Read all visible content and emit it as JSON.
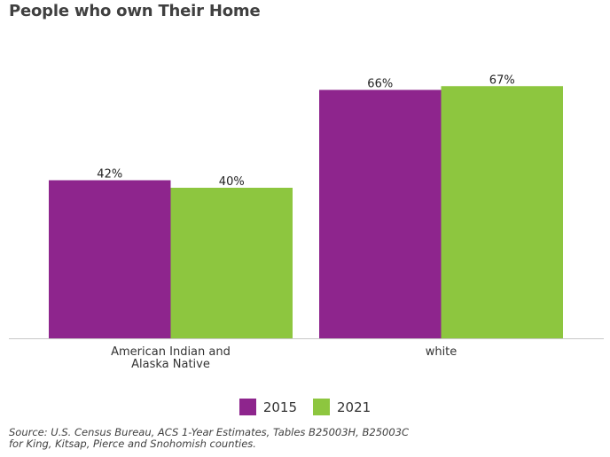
{
  "title": "People who own Their Home",
  "chart_data": {
    "type": "bar",
    "title": "People who own Their Home",
    "categories": [
      [
        "American Indian and",
        "Alaska Native"
      ],
      [
        "white"
      ]
    ],
    "series": [
      {
        "name": "2015",
        "values": [
          42,
          66
        ],
        "labels": [
          "42%",
          "66%"
        ],
        "color": "#8e258d"
      },
      {
        "name": "2021",
        "values": [
          40,
          67
        ],
        "labels": [
          "40%",
          "67%"
        ],
        "color": "#8dc63f"
      }
    ],
    "xlabel": "",
    "ylabel": "",
    "ylim": [
      0,
      70
    ],
    "grid": false,
    "legend_position": "bottom"
  },
  "legend": {
    "items": [
      {
        "label": "2015",
        "color": "#8e258d"
      },
      {
        "label": "2021",
        "color": "#8dc63f"
      }
    ]
  },
  "source": {
    "line1": "Source: U.S. Census Bureau, ACS 1-Year Estimates, Tables B25003H, B25003C",
    "line2": "for King, Kitsap, Pierce and Snohomish counties."
  }
}
